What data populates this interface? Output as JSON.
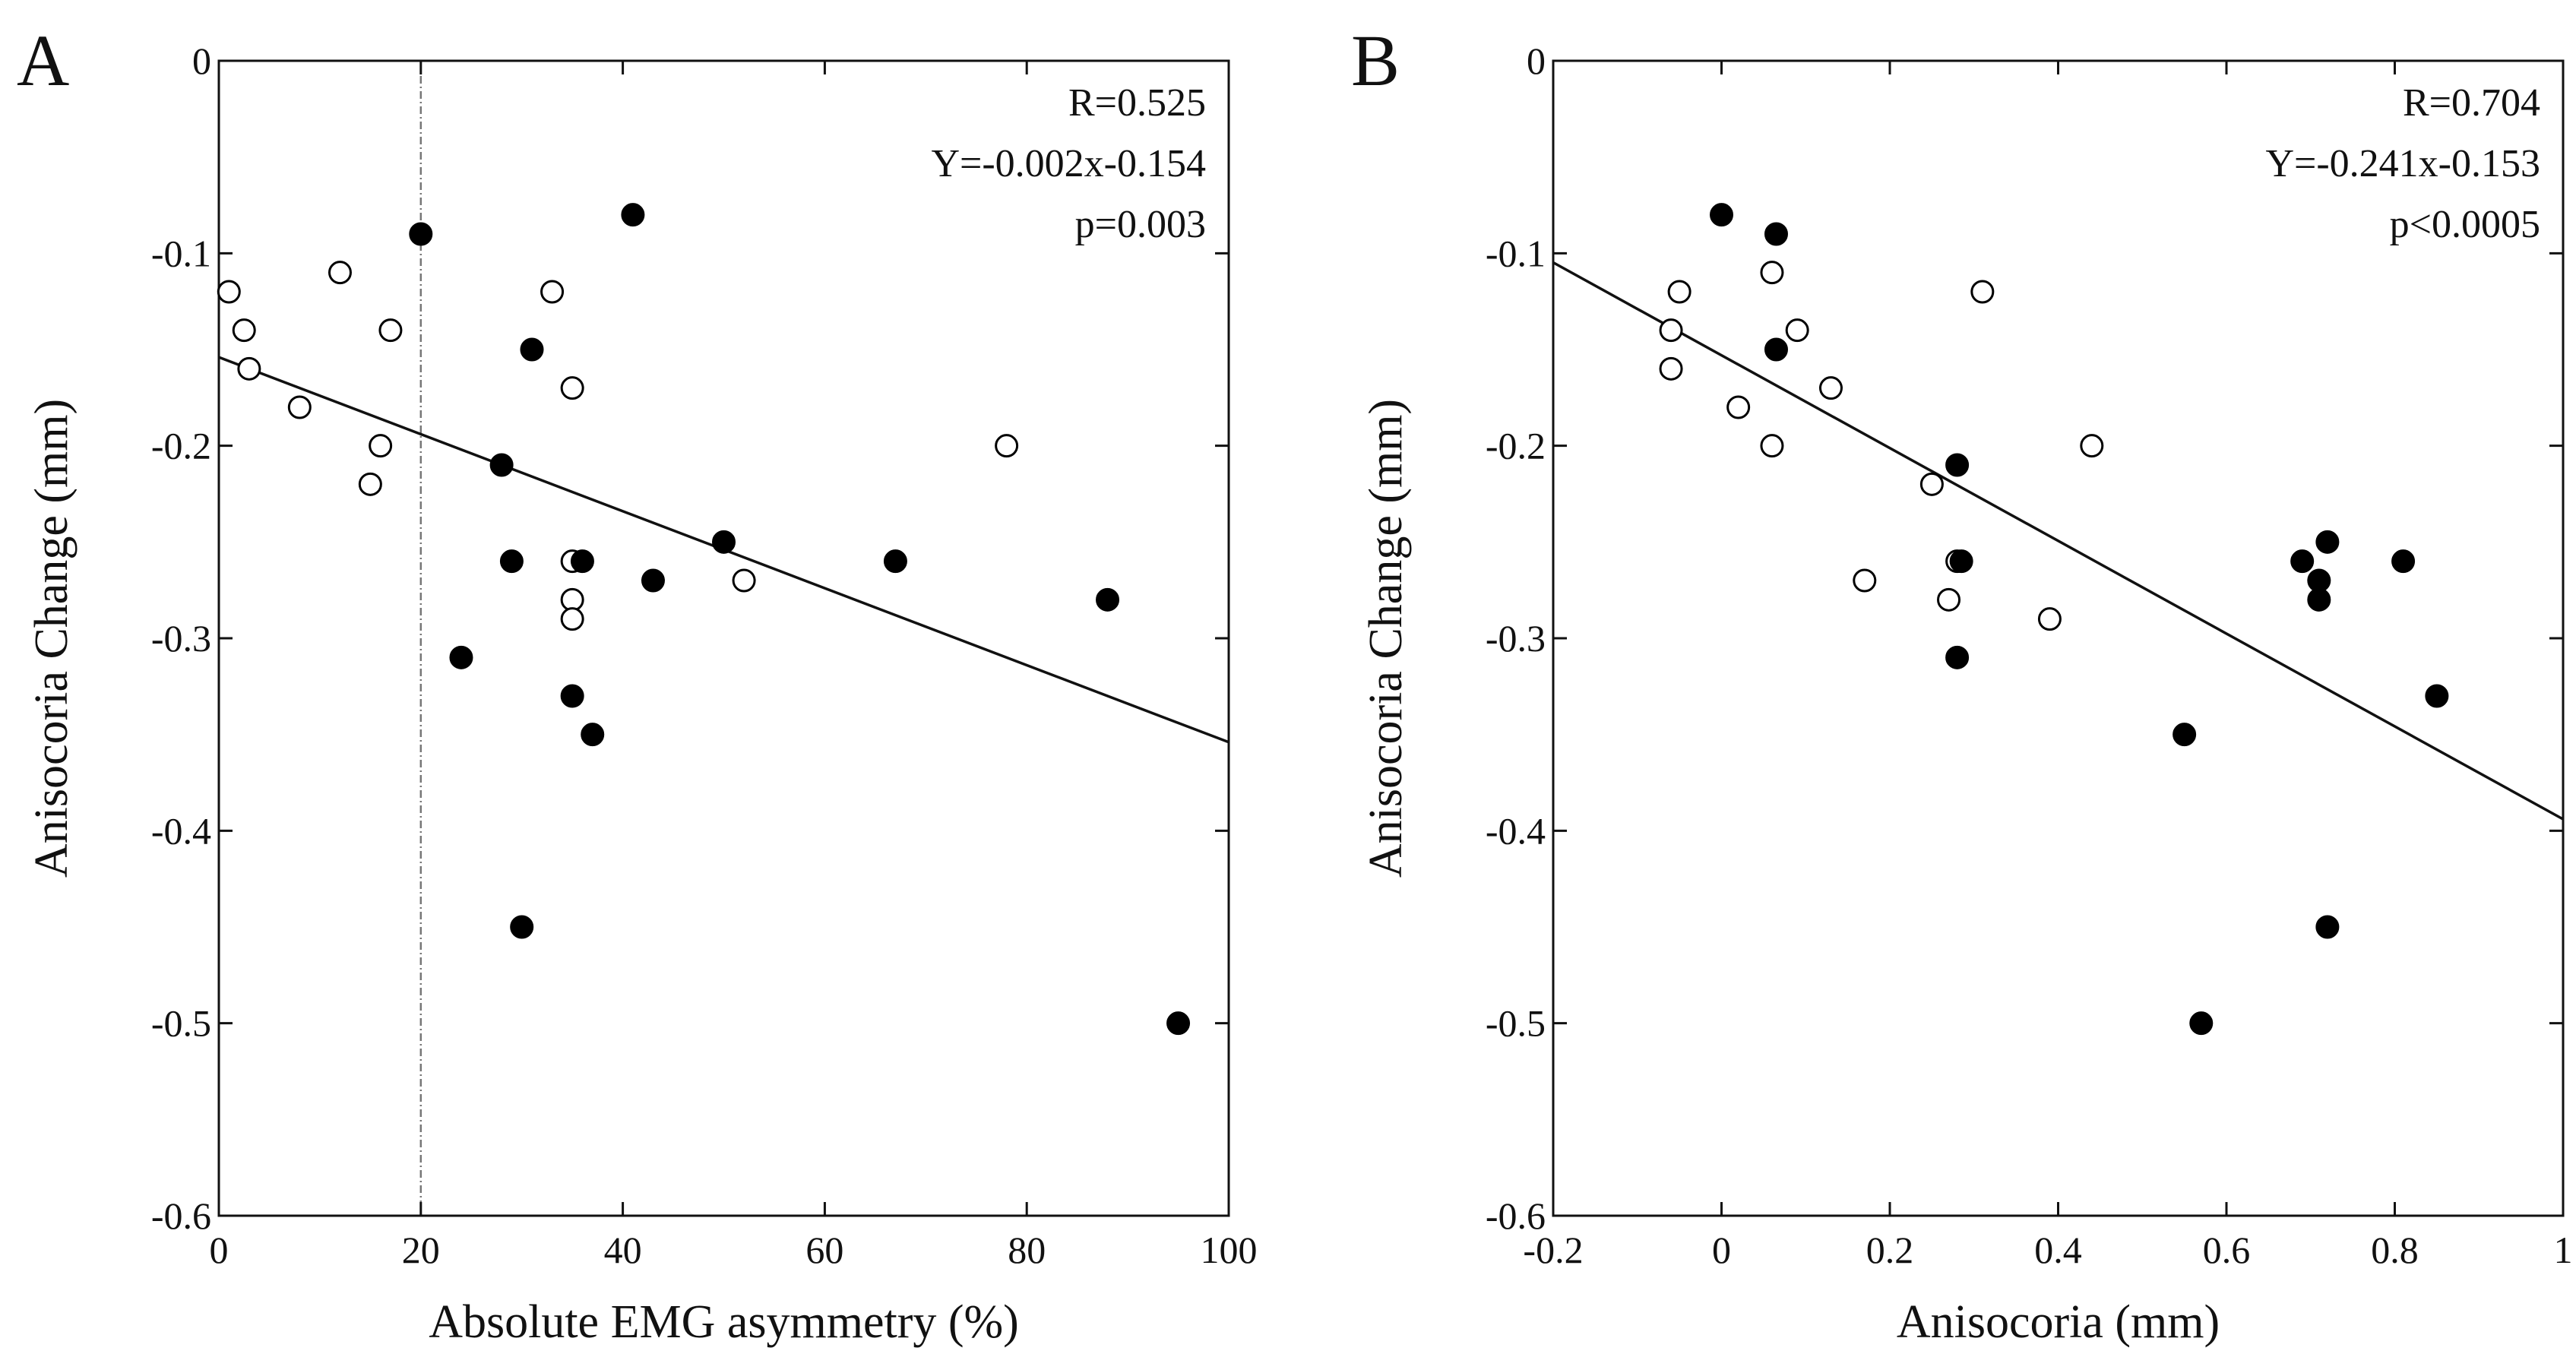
{
  "colors": {
    "ink": "#111111",
    "filled": "#000000",
    "open": "#ffffff",
    "background": "#ffffff",
    "reference_line": "#777777"
  },
  "chart_data": [
    {
      "type": "scatter",
      "panel_label": "A",
      "xlabel": "Absolute EMG asymmetry (%)",
      "ylabel": "Anisocoria Change (mm)",
      "xlim": [
        0,
        100
      ],
      "ylim": [
        -0.6,
        0
      ],
      "xticks": [
        0,
        20,
        40,
        60,
        80,
        100
      ],
      "xtick_labels": [
        "0",
        "20",
        "40",
        "60",
        "80",
        "100"
      ],
      "yticks": [
        0,
        -0.1,
        -0.2,
        -0.3,
        -0.4,
        -0.5,
        -0.6
      ],
      "ytick_labels": [
        "0",
        "-0.1",
        "-0.2",
        "-0.3",
        "-0.4",
        "-0.5",
        "-0.6"
      ],
      "grid": false,
      "stats": [
        "R=0.525",
        "Y=-0.002x-0.154",
        "p=0.003"
      ],
      "fit_line": {
        "slope": -0.002,
        "intercept": -0.154
      },
      "reference_vline_x": 20,
      "series": [
        {
          "marker": "open-circle",
          "points": [
            [
              1,
              -0.12
            ],
            [
              2.5,
              -0.14
            ],
            [
              3,
              -0.16
            ],
            [
              8,
              -0.18
            ],
            [
              12,
              -0.11
            ],
            [
              15,
              -0.22
            ],
            [
              16,
              -0.2
            ],
            [
              17,
              -0.14
            ],
            [
              33,
              -0.12
            ],
            [
              35,
              -0.17
            ],
            [
              35,
              -0.26
            ],
            [
              35,
              -0.28
            ],
            [
              35,
              -0.29
            ],
            [
              52,
              -0.27
            ],
            [
              78,
              -0.2
            ]
          ]
        },
        {
          "marker": "filled-circle",
          "points": [
            [
              20,
              -0.09
            ],
            [
              24,
              -0.31
            ],
            [
              28,
              -0.21
            ],
            [
              29,
              -0.26
            ],
            [
              30,
              -0.45
            ],
            [
              31,
              -0.15
            ],
            [
              35,
              -0.33
            ],
            [
              36,
              -0.26
            ],
            [
              37,
              -0.35
            ],
            [
              41,
              -0.08
            ],
            [
              43,
              -0.27
            ],
            [
              50,
              -0.25
            ],
            [
              67,
              -0.26
            ],
            [
              88,
              -0.28
            ],
            [
              95,
              -0.5
            ]
          ]
        }
      ]
    },
    {
      "type": "scatter",
      "panel_label": "B",
      "xlabel": "Anisocoria (mm)",
      "ylabel": "Anisocoria Change (mm)",
      "xlim": [
        -0.2,
        1
      ],
      "ylim": [
        -0.6,
        0
      ],
      "xticks": [
        -0.2,
        0,
        0.2,
        0.4,
        0.6,
        0.8,
        1
      ],
      "xtick_labels": [
        "-0.2",
        "0",
        "0.2",
        "0.4",
        "0.6",
        "0.8",
        "1"
      ],
      "yticks": [
        0,
        -0.1,
        -0.2,
        -0.3,
        -0.4,
        -0.5,
        -0.6
      ],
      "ytick_labels": [
        "0",
        "-0.1",
        "-0.2",
        "-0.3",
        "-0.4",
        "-0.5",
        "-0.6"
      ],
      "grid": false,
      "stats": [
        "R=0.704",
        "Y=-0.241x-0.153",
        "p<0.0005"
      ],
      "fit_line": {
        "slope": -0.241,
        "intercept": -0.153
      },
      "series": [
        {
          "marker": "open-circle",
          "points": [
            [
              -0.06,
              -0.14
            ],
            [
              -0.06,
              -0.16
            ],
            [
              -0.05,
              -0.12
            ],
            [
              0.02,
              -0.18
            ],
            [
              0.06,
              -0.11
            ],
            [
              0.06,
              -0.2
            ],
            [
              0.09,
              -0.14
            ],
            [
              0.13,
              -0.17
            ],
            [
              0.17,
              -0.27
            ],
            [
              0.25,
              -0.22
            ],
            [
              0.27,
              -0.28
            ],
            [
              0.28,
              -0.26
            ],
            [
              0.31,
              -0.12
            ],
            [
              0.39,
              -0.29
            ],
            [
              0.44,
              -0.2
            ]
          ]
        },
        {
          "marker": "filled-circle",
          "points": [
            [
              0,
              -0.08
            ],
            [
              0.065,
              -0.09
            ],
            [
              0.065,
              -0.15
            ],
            [
              0.28,
              -0.21
            ],
            [
              0.285,
              -0.26
            ],
            [
              0.28,
              -0.31
            ],
            [
              0.55,
              -0.35
            ],
            [
              0.57,
              -0.5
            ],
            [
              0.69,
              -0.26
            ],
            [
              0.71,
              -0.27
            ],
            [
              0.71,
              -0.28
            ],
            [
              0.72,
              -0.25
            ],
            [
              0.72,
              -0.45
            ],
            [
              0.81,
              -0.26
            ],
            [
              0.85,
              -0.33
            ]
          ]
        }
      ]
    }
  ]
}
